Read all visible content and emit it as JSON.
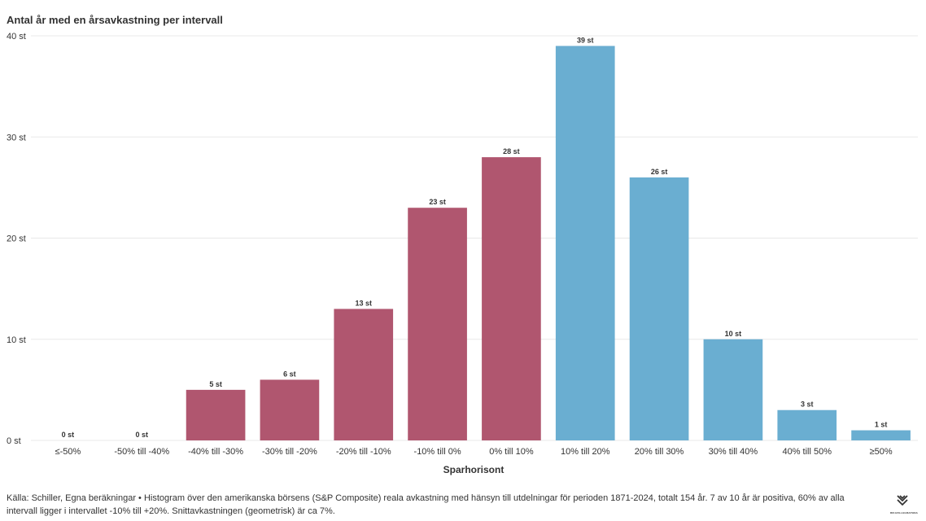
{
  "colors": {
    "negative": "#b0566f",
    "positive": "#6aaed1",
    "grid": "#e8e8e8",
    "text": "#333333"
  },
  "chart_data": {
    "type": "bar",
    "title": "Antal år med en årsavkastning per intervall",
    "xlabel": "Sparhorisont",
    "ylabel": "",
    "ylim": [
      0,
      40
    ],
    "yticks": [
      0,
      10,
      20,
      30,
      40
    ],
    "ytick_labels": [
      "0 st",
      "10 st",
      "20 st",
      "30 st",
      "40 st"
    ],
    "categories": [
      "≤-50%",
      "-50% till -40%",
      "-40% till -30%",
      "-30% till -20%",
      "-20% till -10%",
      "-10% till 0%",
      "0% till 10%",
      "10% till 20%",
      "20% till 30%",
      "30% till 40%",
      "40% till 50%",
      "≥50%"
    ],
    "values": [
      0,
      0,
      5,
      6,
      13,
      23,
      28,
      39,
      26,
      10,
      3,
      1
    ],
    "data_labels": [
      "0 st",
      "0 st",
      "5 st",
      "6 st",
      "13 st",
      "23 st",
      "28 st",
      "39 st",
      "26 st",
      "10 st",
      "3 st",
      "1 st"
    ],
    "color_groups": [
      "negative",
      "negative",
      "negative",
      "negative",
      "negative",
      "negative",
      "negative",
      "positive",
      "positive",
      "positive",
      "positive",
      "positive"
    ]
  },
  "footer": {
    "source": "Källa: Schiller, Egna beräkningar • Histogram över den amerikanska börsens (S&P Composite) reala avkastning med hänsyn till utdelningar för perioden 1871-2024, totalt 154 år. 7 av 10 år är positiva, 60% av alla intervall ligger i intervallet -10% till +20%. Snittavkastningen (geometrisk) är ca 7%.",
    "logo_text": "RIKAVILLEGRAPHNA",
    "logo_icon": "brand-mark-icon"
  }
}
